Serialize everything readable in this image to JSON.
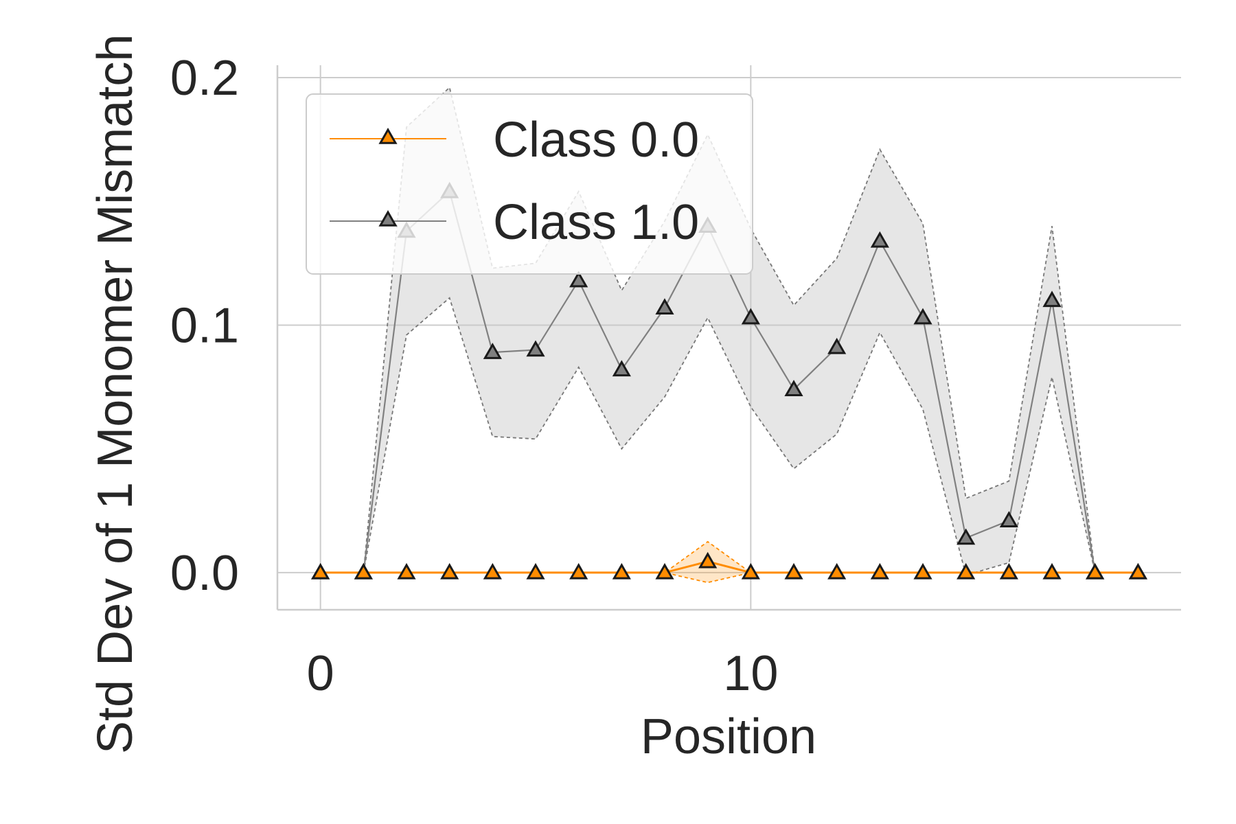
{
  "chart_data": {
    "type": "line",
    "title": "",
    "xlabel": "Position",
    "ylabel": "Std Dev of 1 Monomer Mismatch",
    "xlim": [
      -1,
      20
    ],
    "ylim": [
      -0.015,
      0.205
    ],
    "xticks": [
      0,
      10
    ],
    "xtick_labels": [
      "0",
      "10"
    ],
    "yticks": [
      0.0,
      0.1,
      0.2
    ],
    "ytick_labels": [
      "0.0",
      "0.1",
      "0.2"
    ],
    "grid": true,
    "legend_position": "upper-left",
    "x": [
      0,
      1,
      2,
      3,
      4,
      5,
      6,
      7,
      8,
      9,
      10,
      11,
      12,
      13,
      14,
      15,
      16,
      17,
      18,
      19
    ],
    "series": [
      {
        "name": "Class 0.0",
        "color": "#ff8c00",
        "marker": "triangle-up",
        "values": [
          0,
          0,
          0,
          0,
          0,
          0,
          0,
          0,
          0,
          0.0045,
          0,
          0,
          0,
          0,
          0,
          0,
          0,
          0,
          0,
          0
        ],
        "band_upper": [
          0,
          0,
          0,
          0,
          0,
          0,
          0,
          0,
          0,
          0.0125,
          0,
          0,
          0,
          0,
          0,
          0,
          0,
          0,
          0,
          0
        ],
        "band_lower": [
          0,
          0,
          0,
          0,
          0,
          0,
          0,
          0,
          0,
          -0.004,
          0,
          0,
          0,
          0,
          0,
          0,
          0,
          0,
          0,
          0
        ]
      },
      {
        "name": "Class 1.0",
        "color": "#808080",
        "marker": "triangle-up",
        "values": [
          0,
          0,
          0.138,
          0.154,
          0.089,
          0.09,
          0.118,
          0.082,
          0.107,
          0.14,
          0.103,
          0.074,
          0.091,
          0.134,
          0.103,
          0.014,
          0.021,
          0.11,
          0,
          0
        ],
        "band_upper": [
          0,
          0,
          0.18,
          0.196,
          0.123,
          0.125,
          0.154,
          0.114,
          0.142,
          0.177,
          0.139,
          0.108,
          0.127,
          0.171,
          0.141,
          0.03,
          0.037,
          0.14,
          0,
          0
        ],
        "band_lower": [
          0,
          0,
          0.096,
          0.111,
          0.055,
          0.054,
          0.083,
          0.05,
          0.071,
          0.103,
          0.067,
          0.042,
          0.056,
          0.097,
          0.066,
          -0.001,
          0.004,
          0.079,
          0,
          0
        ]
      }
    ]
  }
}
